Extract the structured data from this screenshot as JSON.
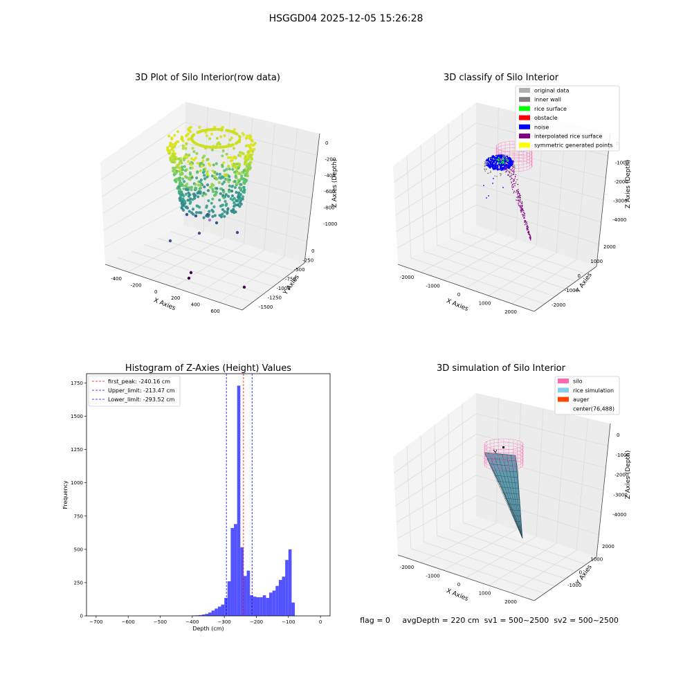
{
  "figure_title": "HSGGD04 2025-12-05 15:26:28",
  "status_text": "flag = 0     avgDepth = 220 cm  sv1 = 500~2500  sv2 = 500~2500",
  "colors": {
    "silo": "#ff69b4",
    "rice_simulation": "#87ceeb",
    "auger": "#ff4500",
    "original_data": "#b0b0b0",
    "inner_wall": "#808080",
    "rice_surface": "#00ff00",
    "obstacle": "#ff0000",
    "noise": "#0000ff",
    "interpolated_rice_surface": "#800080",
    "symmetric_generated_points": "#ffff00",
    "histogram_bar": "#5050ff"
  },
  "chart_data": [
    {
      "type": "scatter",
      "title": "3D Plot of Silo Interior(row data)",
      "xlabel": "X Axies",
      "ylabel": "Y Axies",
      "zlabel": "Z Axies (Depth)",
      "x_ticks": [
        "-400",
        "-200",
        "0",
        "200",
        "400",
        "600"
      ],
      "y_ticks": [
        "0",
        "-250",
        "-500",
        "-750",
        "-1000",
        "-1250",
        "-1500"
      ],
      "z_ticks": [
        "0",
        "-200",
        "-400",
        "-600",
        "-800",
        "-1000"
      ]
    },
    {
      "type": "scatter",
      "title": "3D classify of Silo Interior",
      "xlabel": "X Axies",
      "ylabel": "Y Axies",
      "zlabel": "Z Axies (Depth)",
      "x_ticks": [
        "-2000",
        "-1000",
        "0",
        "1000",
        "2000"
      ],
      "y_ticks": [
        "2000",
        "1000",
        "0",
        "-1000",
        "-2000"
      ],
      "z_ticks": [
        "0",
        "-1000",
        "-2000",
        "-3000",
        "-4000"
      ],
      "legend": [
        "original data",
        "inner wall",
        "rice surface",
        "obstacle",
        "noise",
        "interpolated rice surface",
        "symmetric generated points"
      ],
      "legend_placement": "top-right"
    },
    {
      "type": "bar",
      "title": "Histogram of Z-Axies (Height) Values",
      "xlabel": "Depth (cm)",
      "ylabel": "Frequency",
      "xlim": [
        -730,
        30
      ],
      "ylim": [
        0,
        1820
      ],
      "x_ticks": [
        -700,
        -600,
        -500,
        -400,
        -300,
        -200,
        -100,
        0
      ],
      "y_ticks": [
        0,
        250,
        500,
        750,
        1000,
        1250,
        1500,
        1750
      ],
      "bin_width": 10,
      "bin_starts": [
        -400,
        -390,
        -380,
        -370,
        -360,
        -350,
        -340,
        -330,
        -320,
        -310,
        -300,
        -290,
        -280,
        -270,
        -260,
        -250,
        -240,
        -230,
        -220,
        -210,
        -200,
        -190,
        -180,
        -170,
        -160,
        -150,
        -140,
        -130,
        -120,
        -110,
        -100,
        -90,
        -80,
        -70,
        -60,
        -50,
        -40,
        -30,
        -20,
        -10
      ],
      "values": [
        3,
        4,
        6,
        10,
        15,
        25,
        40,
        55,
        70,
        85,
        135,
        260,
        660,
        690,
        1730,
        515,
        300,
        340,
        155,
        145,
        140,
        140,
        155,
        135,
        175,
        190,
        225,
        270,
        295,
        420,
        500,
        100,
        0,
        0,
        0,
        0,
        0,
        0,
        0,
        0
      ],
      "lines": [
        {
          "label": "first_peak: -240.16 cm",
          "x": -240.16,
          "color": "#ff0000"
        },
        {
          "label": "Upper_limit: -213.47 cm",
          "x": -213.47,
          "color": "#0000ff"
        },
        {
          "label": "Lower_limit: -293.52 cm",
          "x": -293.52,
          "color": "#0000ff"
        }
      ],
      "legend_placement": "top-left",
      "grid": false
    },
    {
      "type": "surface",
      "title": "3D simulation of Silo Interior",
      "xlabel": "X Axies",
      "ylabel": "Y Axies",
      "zlabel": "Z Axies (Depth)",
      "x_ticks": [
        "-2000",
        "-1000",
        "0",
        "1000",
        "2000"
      ],
      "y_ticks": [
        "2000",
        "1000",
        "0",
        "-1000"
      ],
      "z_ticks": [
        "0",
        "-1000",
        "-2000",
        "-3000",
        "-4000"
      ],
      "legend": [
        "silo",
        "rice simulation",
        "auger",
        "center(76,488)"
      ],
      "legend_placement": "top-right"
    }
  ]
}
